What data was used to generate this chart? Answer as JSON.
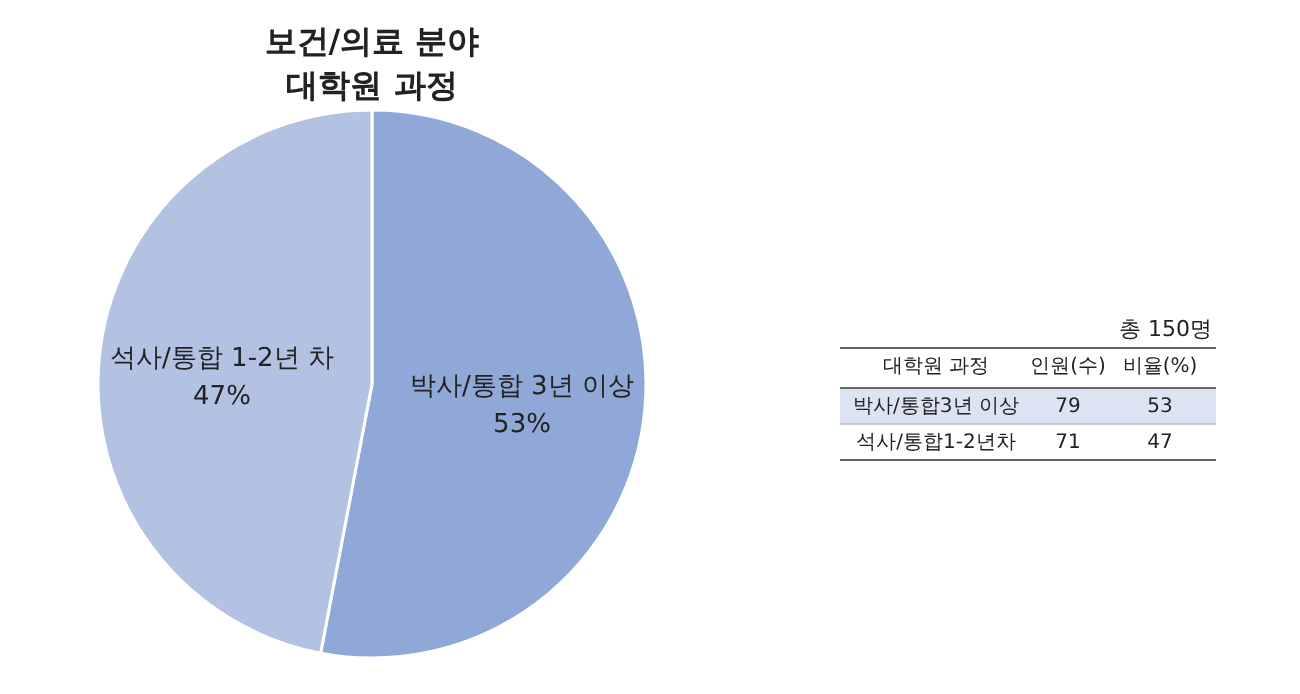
{
  "chart_data": {
    "type": "pie",
    "title": "보건/의료 분야",
    "subtitle": "대학원 과정",
    "categories": [
      "박사/통합 3년 이상",
      "석사/통합 1-2년 차"
    ],
    "values": [
      53,
      47
    ],
    "value_labels": [
      "53%",
      "47%"
    ],
    "colors": [
      "#8fa8d8",
      "#b3c2e3"
    ],
    "annotations": [
      "총 150명",
      "대학원 과정",
      "인원(수)",
      "비율(%)",
      "박사/통합3년 이상",
      "79",
      "53",
      "석사/통합1-2년차",
      "71",
      "47"
    ]
  }
}
